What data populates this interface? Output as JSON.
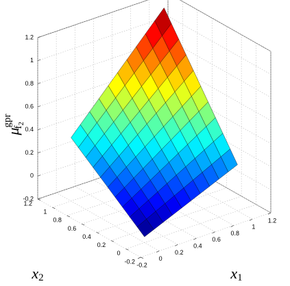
{
  "chart_data": {
    "type": "surface",
    "xlabel": {
      "base": "x",
      "sub": "1"
    },
    "ylabel": {
      "base": "x",
      "sub": "2"
    },
    "zlabel": {
      "base": "μ",
      "sup": "gpr",
      "sub": "f",
      "subsub": "2"
    },
    "x": [
      0,
      0.1,
      0.2,
      0.3,
      0.4,
      0.5,
      0.6,
      0.7,
      0.8,
      0.9,
      1
    ],
    "y": [
      0,
      0.1,
      0.2,
      0.3,
      0.4,
      0.5,
      0.6,
      0.7,
      0.8,
      0.9,
      1
    ],
    "z": [
      [
        -0.15,
        -0.115,
        -0.08,
        -0.045,
        -0.01,
        0.025,
        0.06,
        0.095,
        0.13,
        0.165,
        0.2
      ],
      [
        -0.1,
        -0.06,
        -0.02,
        0.02,
        0.06,
        0.1,
        0.14,
        0.18,
        0.22,
        0.26,
        0.3
      ],
      [
        -0.05,
        -0.005,
        0.04,
        0.085,
        0.13,
        0.175,
        0.22,
        0.265,
        0.31,
        0.355,
        0.4
      ],
      [
        0,
        0.05,
        0.1,
        0.15,
        0.2,
        0.25,
        0.3,
        0.35,
        0.4,
        0.45,
        0.5
      ],
      [
        0.05,
        0.105,
        0.16,
        0.215,
        0.27,
        0.325,
        0.38,
        0.435,
        0.49,
        0.545,
        0.6
      ],
      [
        0.1,
        0.16,
        0.22,
        0.28,
        0.34,
        0.4,
        0.46,
        0.52,
        0.58,
        0.64,
        0.7
      ],
      [
        0.15,
        0.215,
        0.28,
        0.345,
        0.41,
        0.475,
        0.54,
        0.605,
        0.67,
        0.735,
        0.8
      ],
      [
        0.2,
        0.27,
        0.34,
        0.41,
        0.48,
        0.55,
        0.62,
        0.69,
        0.76,
        0.83,
        0.9
      ],
      [
        0.25,
        0.325,
        0.4,
        0.475,
        0.55,
        0.625,
        0.7,
        0.775,
        0.85,
        0.925,
        1.0
      ],
      [
        0.3,
        0.38,
        0.46,
        0.54,
        0.62,
        0.7,
        0.78,
        0.86,
        0.94,
        1.02,
        1.1
      ],
      [
        0.35,
        0.435,
        0.52,
        0.605,
        0.69,
        0.775,
        0.86,
        0.945,
        1.03,
        1.115,
        1.2
      ]
    ],
    "colormap": "jet",
    "xlim": [
      -0.2,
      1.2
    ],
    "xticks": [
      -0.2,
      0,
      0.2,
      0.4,
      0.6,
      0.8,
      1,
      1.2
    ],
    "ylim": [
      -0.2,
      1.2
    ],
    "yticks": [
      -0.2,
      0,
      0.2,
      0.4,
      0.6,
      0.8,
      1,
      1.2
    ],
    "zlim": [
      -0.2,
      1.2
    ],
    "zticks": [
      -0.2,
      0,
      0.2,
      0.4,
      0.6,
      0.8,
      1,
      1.2
    ],
    "grid": true
  }
}
